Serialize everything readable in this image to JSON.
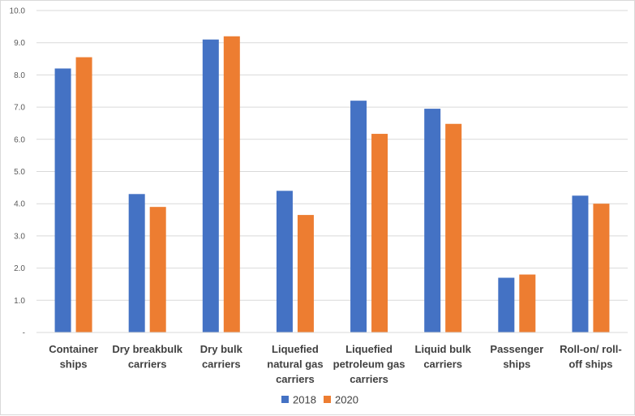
{
  "chart_data": {
    "type": "bar",
    "title": "",
    "xlabel": "",
    "ylabel": "",
    "ylim": [
      0,
      10
    ],
    "yticks": [
      0,
      1,
      2,
      3,
      4,
      5,
      6,
      7,
      8,
      9,
      10
    ],
    "ytick_labels": [
      "-",
      "1.0",
      "2.0",
      "3.0",
      "4.0",
      "5.0",
      "6.0",
      "7.0",
      "8.0",
      "9.0",
      "10.0"
    ],
    "grid": true,
    "legend_position": "bottom",
    "categories": [
      [
        "Container",
        "ships"
      ],
      [
        "Dry breakbulk",
        "carriers"
      ],
      [
        "Dry bulk",
        "carriers"
      ],
      [
        "Liquefied",
        "natural gas",
        "carriers"
      ],
      [
        "Liquefied",
        "petroleum gas",
        "carriers"
      ],
      [
        "Liquid bulk",
        "carriers"
      ],
      [
        "Passenger",
        "ships"
      ],
      [
        "Roll-on/ roll-",
        "off ships"
      ]
    ],
    "series": [
      {
        "name": "2018",
        "color": "#4472c4",
        "values": [
          8.2,
          4.3,
          9.1,
          4.4,
          7.2,
          6.95,
          1.7,
          4.25
        ]
      },
      {
        "name": "2020",
        "color": "#ed7d31",
        "values": [
          8.55,
          3.9,
          9.2,
          3.65,
          6.17,
          6.48,
          1.8,
          4.0
        ]
      }
    ]
  }
}
